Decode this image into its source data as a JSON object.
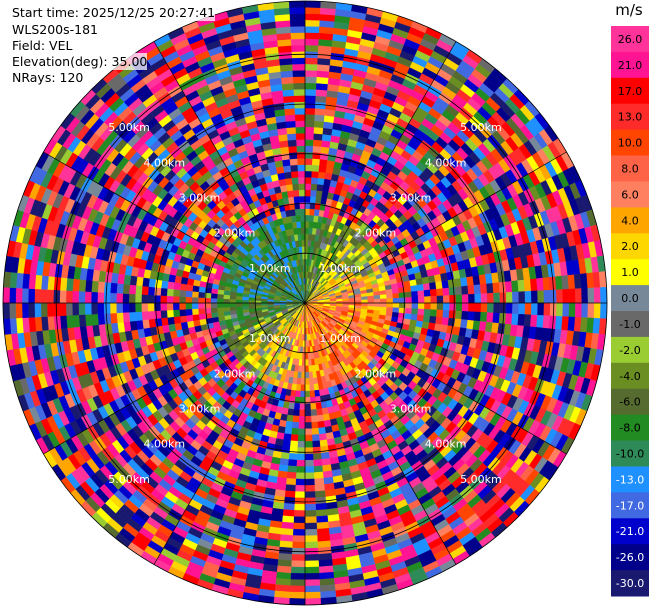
{
  "header": {
    "start_time": "Start time: 2025/12/25 20:27:41",
    "instrument": "WLS200s-181",
    "field": "Field: VEL",
    "elevation": "Elevation(deg): 35.00",
    "nrays": "NRays: 120"
  },
  "chart_data": {
    "type": "heatmap",
    "projection": "polar-ppi",
    "field": "VEL",
    "units": "m/s",
    "n_rays": 120,
    "range_rings_km": [
      1.0,
      2.0,
      3.0,
      4.0,
      5.0
    ],
    "range_ring_labels": [
      "1.00km",
      "2.00km",
      "3.00km",
      "4.00km",
      "5.00km"
    ],
    "colorbar": {
      "label": "m/s",
      "ticks": [
        "26.0",
        "21.0",
        "17.0",
        "13.0",
        "10.0",
        "8.0",
        "6.0",
        "4.0",
        "2.0",
        "1.0",
        "0.0",
        "-1.0",
        "-2.0",
        "-4.0",
        "-6.0",
        "-8.0",
        "-10.0",
        "-13.0",
        "-17.0",
        "-21.0",
        "-26.0",
        "-30.0"
      ],
      "bins": [
        {
          "min": 26,
          "max": 30,
          "color": "#ff3399"
        },
        {
          "min": 21,
          "max": 26,
          "color": "#ff1493"
        },
        {
          "min": 17,
          "max": 21,
          "color": "#ff0000"
        },
        {
          "min": 13,
          "max": 17,
          "color": "#ff2a2a"
        },
        {
          "min": 10,
          "max": 13,
          "color": "#ff4500"
        },
        {
          "min": 8,
          "max": 10,
          "color": "#ff6347"
        },
        {
          "min": 6,
          "max": 8,
          "color": "#ff8060"
        },
        {
          "min": 4,
          "max": 6,
          "color": "#ffa500"
        },
        {
          "min": 2,
          "max": 4,
          "color": "#ffd700"
        },
        {
          "min": 1,
          "max": 2,
          "color": "#ffff00"
        },
        {
          "min": 0,
          "max": 1,
          "color": "#778899"
        },
        {
          "min": -1,
          "max": 0,
          "color": "#696969"
        },
        {
          "min": -2,
          "max": -1,
          "color": "#9acd32"
        },
        {
          "min": -4,
          "max": -2,
          "color": "#6b8e23"
        },
        {
          "min": -6,
          "max": -4,
          "color": "#556b2f"
        },
        {
          "min": -8,
          "max": -6,
          "color": "#228b22"
        },
        {
          "min": -10,
          "max": -8,
          "color": "#2e8b57"
        },
        {
          "min": -13,
          "max": -10,
          "color": "#1e90ff"
        },
        {
          "min": -17,
          "max": -13,
          "color": "#4169e1"
        },
        {
          "min": -21,
          "max": -17,
          "color": "#0000cd"
        },
        {
          "min": -26,
          "max": -21,
          "color": "#00008b"
        },
        {
          "min": -30,
          "max": -26,
          "color": "#191970"
        }
      ]
    }
  }
}
